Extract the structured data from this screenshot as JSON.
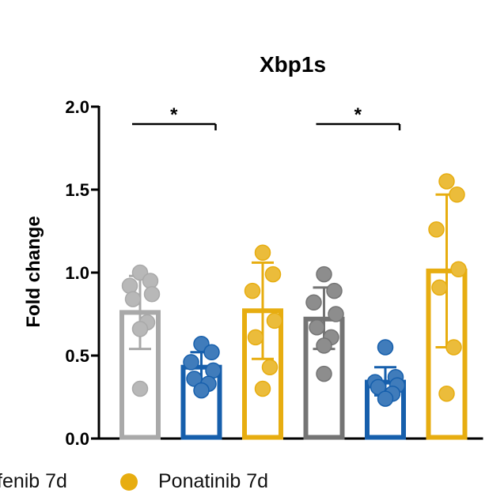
{
  "chart_data": {
    "type": "bar",
    "title": "Xbp1s",
    "ylabel": "Fold change",
    "xlabel": "",
    "ylim": [
      0,
      2.0
    ],
    "yticks": [
      "0.0",
      "0.5",
      "1.0",
      "1.5",
      "2.0"
    ],
    "grid": false,
    "bars": [
      {
        "mean": 0.76,
        "err_low": 0.54,
        "err_high": 0.98,
        "color": "#a9a9a9",
        "points": [
          1.0,
          0.95,
          0.92,
          0.87,
          0.84,
          0.7,
          0.66,
          0.3
        ]
      },
      {
        "mean": 0.43,
        "err_low": 0.33,
        "err_high": 0.52,
        "color": "#165fac",
        "points": [
          0.57,
          0.52,
          0.46,
          0.41,
          0.36,
          0.33,
          0.29
        ]
      },
      {
        "mean": 0.77,
        "err_low": 0.48,
        "err_high": 1.06,
        "color": "#e7ad10",
        "points": [
          1.12,
          0.99,
          0.89,
          0.71,
          0.61,
          0.43,
          0.3
        ]
      },
      {
        "mean": 0.72,
        "err_low": 0.54,
        "err_high": 0.91,
        "color": "#747474",
        "points": [
          0.99,
          0.89,
          0.82,
          0.75,
          0.67,
          0.61,
          0.56,
          0.39
        ]
      },
      {
        "mean": 0.34,
        "err_low": 0.26,
        "err_high": 0.43,
        "color": "#165fac",
        "points": [
          0.55,
          0.37,
          0.34,
          0.32,
          0.31,
          0.27,
          0.24
        ]
      },
      {
        "mean": 1.01,
        "err_low": 0.55,
        "err_high": 1.47,
        "color": "#e7ad10",
        "points": [
          1.55,
          1.47,
          1.26,
          1.02,
          0.91,
          0.55,
          0.27
        ]
      }
    ],
    "significance": [
      {
        "from": 0,
        "to": 1,
        "y": 1.9,
        "label": "*"
      },
      {
        "from": 3,
        "to": 4,
        "y": 1.9,
        "label": "*"
      }
    ],
    "legend_position": "bottom"
  },
  "legend": [
    {
      "label": "fenib 7d",
      "color": ""
    },
    {
      "label": "Ponatinib 7d",
      "color": "#e7ad10"
    }
  ]
}
